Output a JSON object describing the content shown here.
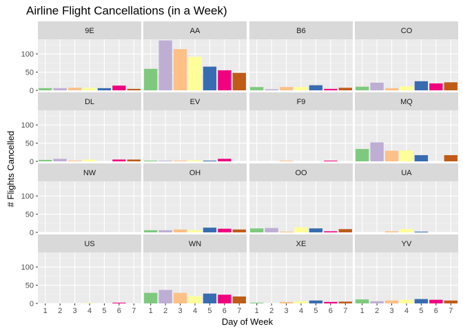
{
  "chart_data": {
    "type": "bar",
    "title": "Airline Flight Cancellations (in a Week)",
    "xlabel": "Day of Week",
    "ylabel": "# Flights Cancelled",
    "categories": [
      "1",
      "2",
      "3",
      "4",
      "5",
      "6",
      "7"
    ],
    "ylim": [
      0,
      140
    ],
    "yticks": [
      0,
      50,
      100
    ],
    "grid": true,
    "legend": "none",
    "colors": [
      "#7FC97F",
      "#BEAED4",
      "#FDC086",
      "#FFFF99",
      "#386CB0",
      "#F0027F",
      "#BF5B17"
    ],
    "panels": [
      {
        "carrier": "9E",
        "values": [
          6,
          6,
          7,
          7,
          6,
          13,
          4
        ]
      },
      {
        "carrier": "AA",
        "values": [
          59,
          137,
          113,
          92,
          65,
          55,
          48
        ]
      },
      {
        "carrier": "B6",
        "values": [
          9,
          3,
          9,
          9,
          14,
          4,
          7
        ]
      },
      {
        "carrier": "CO",
        "values": [
          10,
          21,
          6,
          11,
          25,
          19,
          22
        ]
      },
      {
        "carrier": "DL",
        "values": [
          4,
          7,
          2,
          5,
          0,
          5,
          5
        ]
      },
      {
        "carrier": "EV",
        "values": [
          2,
          2,
          2,
          3,
          2,
          7,
          0
        ]
      },
      {
        "carrier": "F9",
        "values": [
          0,
          0,
          2,
          0,
          0,
          2,
          0
        ]
      },
      {
        "carrier": "MQ",
        "values": [
          34,
          52,
          29,
          30,
          17,
          0,
          17
        ]
      },
      {
        "carrier": "NW",
        "values": [
          0,
          0,
          0,
          0,
          0,
          0,
          0
        ]
      },
      {
        "carrier": "OH",
        "values": [
          6,
          6,
          8,
          6,
          13,
          10,
          8
        ]
      },
      {
        "carrier": "OO",
        "values": [
          11,
          12,
          2,
          14,
          11,
          3,
          9
        ]
      },
      {
        "carrier": "UA",
        "values": [
          0,
          0,
          3,
          9,
          2,
          0,
          0
        ]
      },
      {
        "carrier": "US",
        "values": [
          0,
          0,
          0,
          1,
          0,
          2,
          0
        ]
      },
      {
        "carrier": "WN",
        "values": [
          29,
          37,
          29,
          20,
          27,
          24,
          19
        ]
      },
      {
        "carrier": "XE",
        "values": [
          2,
          0,
          4,
          6,
          8,
          4,
          5
        ]
      },
      {
        "carrier": "YV",
        "values": [
          11,
          6,
          8,
          10,
          12,
          10,
          8
        ]
      }
    ]
  }
}
